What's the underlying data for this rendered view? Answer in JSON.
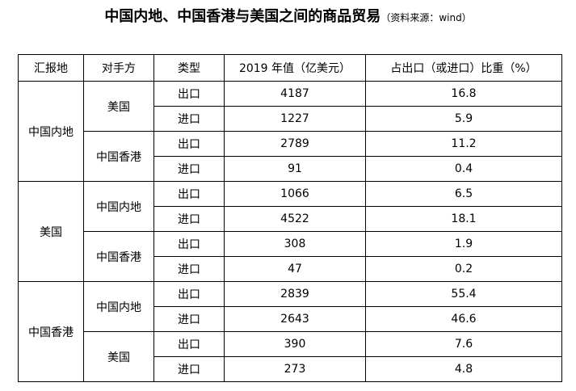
{
  "header": {
    "title": "中国内地、中国香港与美国之间的商品贸易",
    "source": "（资料来源：wind）"
  },
  "table": {
    "columns": [
      "汇报地",
      "对手方",
      "类型",
      "2019 年值（亿美元）",
      "占出口（或进口）比重（%）"
    ],
    "groups": [
      {
        "reporter": "中国内地",
        "partners": [
          {
            "partner": "美国",
            "rows": [
              {
                "type": "出口",
                "value": 4187,
                "share": 16.8
              },
              {
                "type": "进口",
                "value": 1227,
                "share": 5.9
              }
            ]
          },
          {
            "partner": "中国香港",
            "rows": [
              {
                "type": "出口",
                "value": 2789,
                "share": 11.2
              },
              {
                "type": "进口",
                "value": 91,
                "share": 0.4
              }
            ]
          }
        ]
      },
      {
        "reporter": "美国",
        "partners": [
          {
            "partner": "中国内地",
            "rows": [
              {
                "type": "出口",
                "value": 1066,
                "share": 6.5
              },
              {
                "type": "进口",
                "value": 4522,
                "share": 18.1
              }
            ]
          },
          {
            "partner": "中国香港",
            "rows": [
              {
                "type": "出口",
                "value": 308,
                "share": 1.9
              },
              {
                "type": "进口",
                "value": 47,
                "share": 0.2
              }
            ]
          }
        ]
      },
      {
        "reporter": "中国香港",
        "partners": [
          {
            "partner": "中国内地",
            "rows": [
              {
                "type": "出口",
                "value": 2839,
                "share": 55.4
              },
              {
                "type": "进口",
                "value": 2643,
                "share": 46.6
              }
            ]
          },
          {
            "partner": "美国",
            "rows": [
              {
                "type": "出口",
                "value": 390,
                "share": 7.6
              },
              {
                "type": "进口",
                "value": 273,
                "share": 4.8
              }
            ]
          }
        ]
      }
    ]
  }
}
